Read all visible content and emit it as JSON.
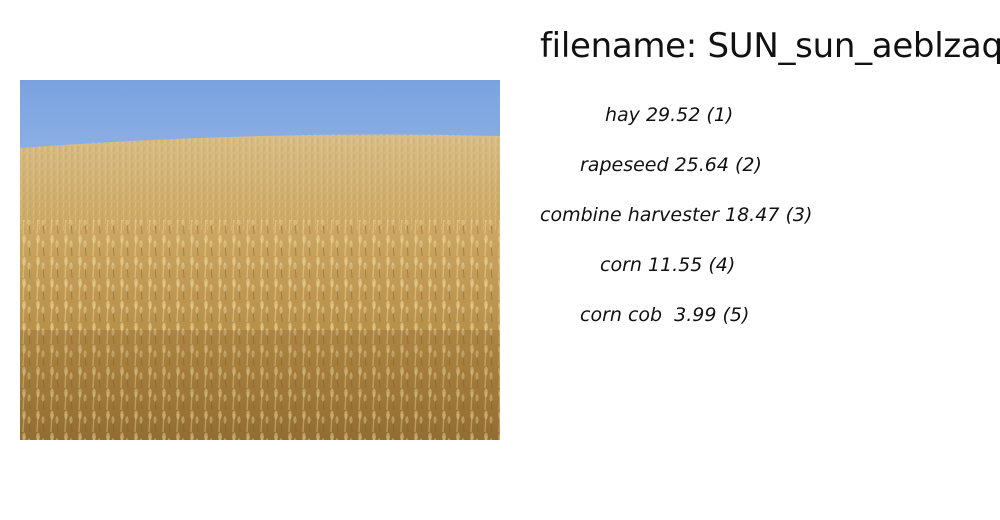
{
  "title": "filename: SUN_sun_aeblzaqx",
  "image": {
    "icon": "wheat-field-photo",
    "colors": {
      "sky_top": "#7aa3e0",
      "sky_bottom": "#cfe0f4",
      "field_light": "#d9b877",
      "field_mid": "#b8924a",
      "field_dark": "#7a5a28"
    }
  },
  "predictions": [
    {
      "text": "hay 29.52 (1)"
    },
    {
      "text": "rapeseed 25.64 (2)"
    },
    {
      "text": "combine harvester 18.47 (3)"
    },
    {
      "text": "corn 11.55 (4)"
    },
    {
      "text": "corn cob  3.99 (5)"
    }
  ]
}
